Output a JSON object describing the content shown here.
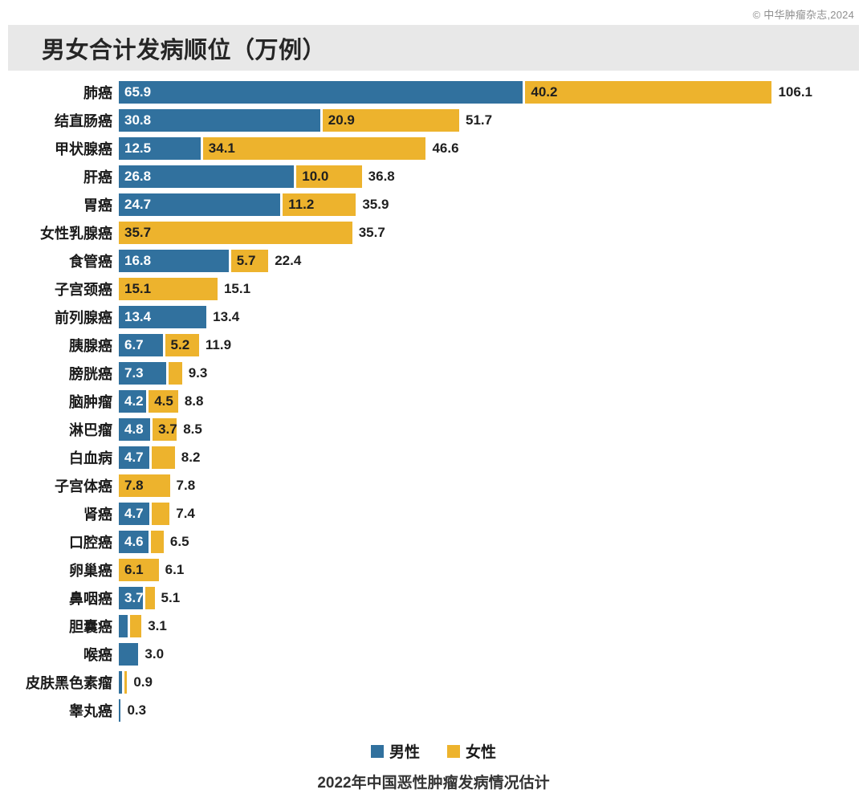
{
  "chart_data": {
    "type": "bar",
    "orientation": "horizontal-stacked",
    "title": "男女合计发病顺位（万例）",
    "caption": "2022年中国恶性肿瘤发病情况估计",
    "copyright": "© 中华肿瘤杂志,2024",
    "unit": "万例",
    "xmax": 106.1,
    "grid": false,
    "legend_position": "bottom-center",
    "colors": {
      "male": "#31719E",
      "female": "#EDB32D"
    },
    "legend": [
      {
        "name": "男性",
        "color": "#31719E"
      },
      {
        "name": "女性",
        "color": "#EDB32D"
      }
    ],
    "rows": [
      {
        "label": "肺癌",
        "male": 65.9,
        "female": 40.2,
        "male_label": "65.9",
        "female_label": "40.2",
        "total_label": "106.1"
      },
      {
        "label": "结直肠癌",
        "male": 30.8,
        "female": 20.9,
        "male_label": "30.8",
        "female_label": "20.9",
        "total_label": "51.7"
      },
      {
        "label": "甲状腺癌",
        "male": 12.5,
        "female": 34.1,
        "male_label": "12.5",
        "female_label": "34.1",
        "total_label": "46.6"
      },
      {
        "label": "肝癌",
        "male": 26.8,
        "female": 10.0,
        "male_label": "26.8",
        "female_label": "10.0",
        "total_label": "36.8"
      },
      {
        "label": "胃癌",
        "male": 24.7,
        "female": 11.2,
        "male_label": "24.7",
        "female_label": "11.2",
        "total_label": "35.9"
      },
      {
        "label": "女性乳腺癌",
        "male": 0,
        "female": 35.7,
        "male_label": "",
        "female_label": "35.7",
        "total_label": "35.7"
      },
      {
        "label": "食管癌",
        "male": 16.8,
        "female": 5.7,
        "male_label": "16.8",
        "female_label": "5.7",
        "total_label": "22.4"
      },
      {
        "label": "子宫颈癌",
        "male": 0,
        "female": 15.1,
        "male_label": "",
        "female_label": "15.1",
        "total_label": "15.1"
      },
      {
        "label": "前列腺癌",
        "male": 13.4,
        "female": 0,
        "male_label": "13.4",
        "female_label": "",
        "total_label": "13.4"
      },
      {
        "label": "胰腺癌",
        "male": 6.7,
        "female": 5.2,
        "male_label": "6.7",
        "female_label": "5.2",
        "total_label": "11.9"
      },
      {
        "label": "膀胱癌",
        "male": 7.3,
        "female": 2.0,
        "male_label": "7.3",
        "female_label": "",
        "total_label": "9.3"
      },
      {
        "label": "脑肿瘤",
        "male": 4.2,
        "female": 4.5,
        "male_label": "4.2",
        "female_label": "4.5",
        "total_label": "8.8"
      },
      {
        "label": "淋巴瘤",
        "male": 4.8,
        "female": 3.7,
        "male_label": "4.8",
        "female_label": "3.7",
        "total_label": "8.5"
      },
      {
        "label": "白血病",
        "male": 4.7,
        "female": 3.5,
        "male_label": "4.7",
        "female_label": "",
        "total_label": "8.2"
      },
      {
        "label": "子宫体癌",
        "male": 0,
        "female": 7.8,
        "male_label": "",
        "female_label": "7.8",
        "total_label": "7.8"
      },
      {
        "label": "肾癌",
        "male": 4.7,
        "female": 2.7,
        "male_label": "4.7",
        "female_label": "",
        "total_label": "7.4"
      },
      {
        "label": "口腔癌",
        "male": 4.6,
        "female": 1.9,
        "male_label": "4.6",
        "female_label": "",
        "total_label": "6.5"
      },
      {
        "label": "卵巢癌",
        "male": 0,
        "female": 6.1,
        "male_label": "",
        "female_label": "6.1",
        "total_label": "6.1"
      },
      {
        "label": "鼻咽癌",
        "male": 3.7,
        "female": 1.4,
        "male_label": "3.7",
        "female_label": "",
        "total_label": "5.1"
      },
      {
        "label": "胆囊癌",
        "male": 1.4,
        "female": 1.7,
        "male_label": "",
        "female_label": "",
        "total_label": "3.1"
      },
      {
        "label": "喉癌",
        "male": 3.0,
        "female": 0,
        "male_label": "",
        "female_label": "",
        "total_label": "3.0"
      },
      {
        "label": "皮肤黑色素瘤",
        "male": 0.5,
        "female": 0.4,
        "male_label": "",
        "female_label": "",
        "total_label": "0.9"
      },
      {
        "label": "睾丸癌",
        "male": 0.3,
        "female": 0,
        "male_label": "",
        "female_label": "",
        "total_label": "0.3"
      }
    ]
  }
}
